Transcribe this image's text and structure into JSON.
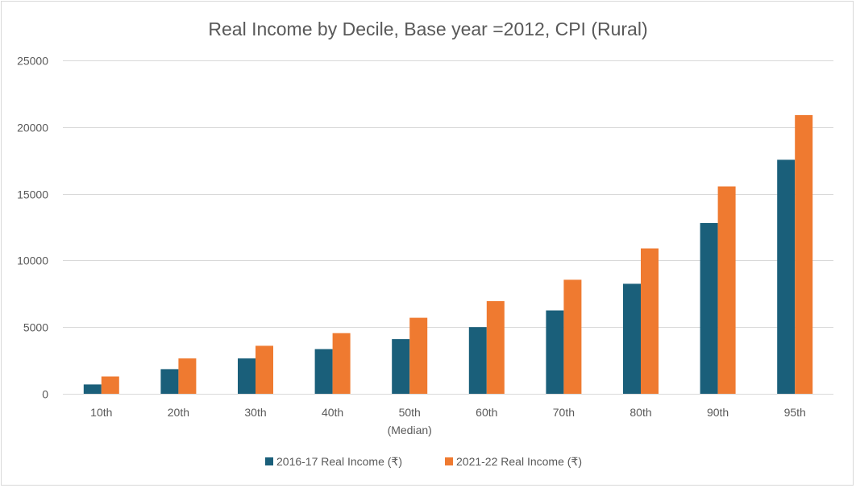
{
  "chart_data": {
    "type": "bar",
    "title": "Real Income by Decile, Base year =2012, CPI (Rural)",
    "xlabel": "",
    "ylabel": "",
    "categories": [
      [
        "10th"
      ],
      [
        "20th"
      ],
      [
        "30th"
      ],
      [
        "40th"
      ],
      [
        "50th",
        "(Median)"
      ],
      [
        "60th"
      ],
      [
        "70th"
      ],
      [
        "80th"
      ],
      [
        "90th"
      ],
      [
        "95th"
      ]
    ],
    "series": [
      {
        "name": "2016-17 Real Income (₹)",
        "color": "#1a5f7a",
        "values": [
          700,
          1850,
          2650,
          3350,
          4100,
          5000,
          6250,
          8250,
          12800,
          17550
        ]
      },
      {
        "name": "2021-22 Real Income (₹)",
        "color": "#ef7a30",
        "values": [
          1300,
          2650,
          3600,
          4550,
          5700,
          6950,
          8550,
          10900,
          15550,
          20900
        ]
      }
    ],
    "ylim": [
      0,
      25000
    ],
    "yticks": [
      0,
      5000,
      10000,
      15000,
      20000,
      25000
    ],
    "grid": true,
    "legend_position": "bottom"
  }
}
